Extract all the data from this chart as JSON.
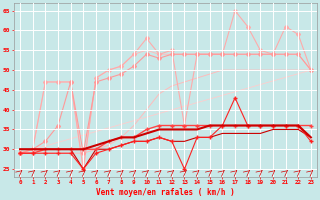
{
  "x": [
    0,
    1,
    2,
    3,
    4,
    5,
    6,
    7,
    8,
    9,
    10,
    11,
    12,
    13,
    14,
    15,
    16,
    17,
    18,
    19,
    20,
    21,
    22,
    23
  ],
  "series": [
    {
      "y": [
        29,
        30,
        47,
        47,
        47,
        25,
        48,
        50,
        51,
        54,
        58,
        54,
        55,
        36,
        54,
        54,
        54,
        65,
        61,
        55,
        54,
        61,
        59,
        50
      ],
      "color": "#ffaaaa",
      "lw": 0.8,
      "marker": "D",
      "ms": 2.0,
      "zorder": 2,
      "label": "upper_light"
    },
    {
      "y": [
        29,
        30,
        47,
        47,
        47,
        25,
        48,
        50,
        51,
        54,
        55,
        54,
        54,
        54,
        54,
        54,
        54,
        54,
        54,
        54,
        54,
        54,
        54,
        50
      ],
      "color": "#ffbbbb",
      "lw": 0.7,
      "marker": null,
      "ms": 0,
      "zorder": 1,
      "label": "upper_lightest"
    },
    {
      "y": [
        29,
        30,
        32,
        36,
        47,
        29,
        47,
        48,
        49,
        51,
        54,
        53,
        54,
        54,
        54,
        54,
        54,
        54,
        54,
        54,
        54,
        54,
        54,
        50
      ],
      "color": "#ff9999",
      "lw": 0.8,
      "marker": "D",
      "ms": 2.0,
      "zorder": 2,
      "label": "upper_mid"
    },
    {
      "y": [
        29,
        30,
        29,
        29,
        29,
        29,
        30,
        31,
        33,
        36,
        40,
        44,
        46,
        47,
        48,
        49,
        50,
        50,
        50,
        50,
        50,
        50,
        50,
        50
      ],
      "color": "#ffbbbb",
      "lw": 0.7,
      "marker": null,
      "ms": 0,
      "zorder": 1,
      "label": "diagonal_light"
    },
    {
      "y": [
        29,
        29,
        30,
        30,
        30,
        30,
        30,
        32,
        33,
        33,
        35,
        36,
        36,
        36,
        36,
        36,
        36,
        36,
        36,
        36,
        36,
        36,
        36,
        36
      ],
      "color": "#ff4444",
      "lw": 1.0,
      "marker": "+",
      "ms": 3.5,
      "zorder": 4,
      "label": "mid_dark1"
    },
    {
      "y": [
        30,
        30,
        30,
        30,
        30,
        30,
        31,
        32,
        33,
        33,
        34,
        35,
        35,
        35,
        35,
        36,
        36,
        36,
        36,
        36,
        36,
        36,
        36,
        33
      ],
      "color": "#cc0000",
      "lw": 1.5,
      "marker": null,
      "ms": 0,
      "zorder": 5,
      "label": "lower_thick"
    },
    {
      "y": [
        29,
        29,
        29,
        29,
        29,
        25,
        29,
        30,
        31,
        32,
        32,
        33,
        32,
        25,
        33,
        33,
        36,
        43,
        36,
        36,
        36,
        36,
        36,
        32
      ],
      "color": "#ff2222",
      "lw": 0.8,
      "marker": "+",
      "ms": 3.0,
      "zorder": 4,
      "label": "lower_upper"
    },
    {
      "y": [
        30,
        30,
        30,
        30,
        30,
        25,
        30,
        30,
        31,
        32,
        32,
        33,
        32,
        32,
        33,
        33,
        34,
        34,
        34,
        34,
        35,
        35,
        35,
        33
      ],
      "color": "#cc0000",
      "lw": 0.8,
      "marker": null,
      "ms": 0,
      "zorder": 3,
      "label": "lower_flat"
    }
  ],
  "ylim": [
    23,
    67
  ],
  "yticks": [
    25,
    30,
    35,
    40,
    45,
    50,
    55,
    60,
    65
  ],
  "xticks": [
    0,
    1,
    2,
    3,
    4,
    5,
    6,
    7,
    8,
    9,
    10,
    11,
    12,
    13,
    14,
    15,
    16,
    17,
    18,
    19,
    20,
    21,
    22,
    23
  ],
  "xlabel": "Vent moyen/en rafales ( km/h )",
  "bg_color": "#c8e8e8",
  "grid_color": "#ffffff"
}
